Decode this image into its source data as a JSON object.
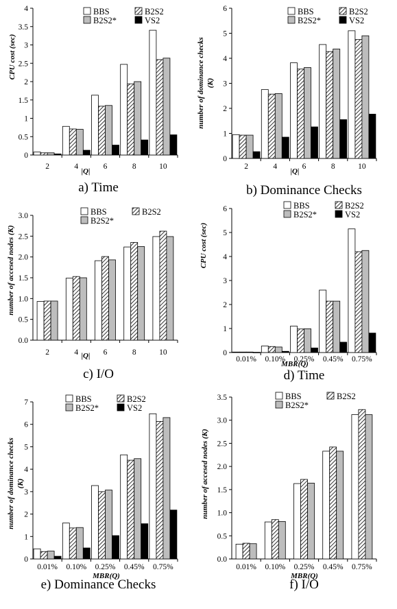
{
  "figure": {
    "patterns": {
      "BBS": "white",
      "B2S2": "hatch",
      "B2S2*": "gray",
      "VS2": "black"
    },
    "colors": {
      "gray": "#bdbdbd",
      "black": "#000000",
      "white": "#ffffff"
    }
  },
  "chart_data": [
    {
      "id": "a",
      "type": "bar",
      "caption": "a) Time",
      "ylabel": "CPU cost (sec)",
      "xlabel": "|Q|",
      "ylim": [
        0,
        4
      ],
      "yticks": [
        "0",
        "0.5",
        "1",
        "1.5",
        "2",
        "2.5",
        "3",
        "3.5",
        "4"
      ],
      "categories": [
        "2",
        "4",
        "6",
        "8",
        "10"
      ],
      "series": [
        {
          "name": "BBS",
          "values": [
            0.08,
            0.78,
            1.63,
            2.47,
            3.4
          ]
        },
        {
          "name": "B2S2",
          "values": [
            0.06,
            0.71,
            1.33,
            1.94,
            2.6
          ]
        },
        {
          "name": "B2S2*",
          "values": [
            0.06,
            0.7,
            1.35,
            2.0,
            2.64
          ]
        },
        {
          "name": "VS2",
          "values": [
            0.03,
            0.13,
            0.27,
            0.41,
            0.55
          ]
        }
      ],
      "legend_cols": 2,
      "legend": "top-right"
    },
    {
      "id": "b",
      "type": "bar",
      "caption": "b) Dominance Checks",
      "ylabel": "number of dominance checks (K)",
      "xlabel": "|Q|",
      "ylim": [
        0,
        6
      ],
      "yticks": [
        "0",
        "1",
        "2",
        "3",
        "4",
        "5",
        "6"
      ],
      "categories": [
        "2",
        "4",
        "6",
        "8",
        "10"
      ],
      "series": [
        {
          "name": "BBS",
          "values": [
            0.95,
            2.75,
            3.82,
            4.55,
            5.1
          ]
        },
        {
          "name": "B2S2",
          "values": [
            0.93,
            2.57,
            3.57,
            4.27,
            4.75
          ]
        },
        {
          "name": "B2S2*",
          "values": [
            0.93,
            2.59,
            3.63,
            4.37,
            4.9
          ]
        },
        {
          "name": "VS2",
          "values": [
            0.27,
            0.85,
            1.26,
            1.55,
            1.77
          ]
        }
      ],
      "legend_cols": 2,
      "legend": "top-right"
    },
    {
      "id": "c",
      "type": "bar",
      "caption": "c) I/O",
      "ylabel": "number of accesed nodes (K)",
      "xlabel": "|Q|",
      "ylim": [
        0,
        3
      ],
      "yticks": [
        "0.0",
        "0.5",
        "1.0",
        "1.5",
        "2.0",
        "2.5",
        "3.0"
      ],
      "categories": [
        "2",
        "4",
        "6",
        "8",
        "10"
      ],
      "series": [
        {
          "name": "BBS",
          "values": [
            0.93,
            1.49,
            1.91,
            2.24,
            2.49
          ]
        },
        {
          "name": "B2S2",
          "values": [
            0.94,
            1.53,
            2.01,
            2.35,
            2.62
          ]
        },
        {
          "name": "B2S2*",
          "values": [
            0.94,
            1.5,
            1.93,
            2.25,
            2.49
          ]
        }
      ],
      "legend_cols": 2,
      "legend": "top-right"
    },
    {
      "id": "d",
      "type": "bar",
      "caption": "d) Time",
      "ylabel": "CPU cost (sec)",
      "xlabel": "MBR(Q)",
      "ylim": [
        0,
        6
      ],
      "yticks": [
        "0",
        "1",
        "2",
        "3",
        "4",
        "5",
        "6"
      ],
      "categories": [
        "0.01%",
        "0.10%",
        "0.25%",
        "0.45%",
        "0.75%"
      ],
      "series": [
        {
          "name": "BBS",
          "values": [
            0.02,
            0.27,
            1.1,
            2.6,
            5.15
          ]
        },
        {
          "name": "B2S2",
          "values": [
            0.02,
            0.25,
            0.98,
            2.14,
            4.2
          ]
        },
        {
          "name": "B2S2*",
          "values": [
            0.02,
            0.23,
            0.99,
            2.14,
            4.25
          ]
        },
        {
          "name": "VS2",
          "values": [
            0.01,
            0.05,
            0.19,
            0.43,
            0.81
          ]
        }
      ],
      "legend_cols": 2,
      "legend": "top-right"
    },
    {
      "id": "e",
      "type": "bar",
      "caption": "e) Dominance Checks",
      "ylabel": "number of dominance checks (K)",
      "xlabel": "MBR(Q)",
      "ylim": [
        0,
        7
      ],
      "yticks": [
        "0",
        "1",
        "2",
        "3",
        "4",
        "5",
        "6",
        "7"
      ],
      "categories": [
        "0.01%",
        "0.10%",
        "0.25%",
        "0.45%",
        "0.75%"
      ],
      "series": [
        {
          "name": "BBS",
          "values": [
            0.45,
            1.6,
            3.27,
            4.64,
            6.47
          ]
        },
        {
          "name": "B2S2",
          "values": [
            0.33,
            1.38,
            3.0,
            4.4,
            6.13
          ]
        },
        {
          "name": "B2S2*",
          "values": [
            0.35,
            1.4,
            3.07,
            4.47,
            6.3
          ]
        },
        {
          "name": "VS2",
          "values": [
            0.12,
            0.49,
            1.04,
            1.57,
            2.18
          ]
        }
      ],
      "legend_cols": 2,
      "legend": "top-right"
    },
    {
      "id": "f",
      "type": "bar",
      "caption": "f) I/O",
      "ylabel": "number of accesed nodes (K)",
      "xlabel": "MBR(Q)",
      "ylim": [
        0,
        3.5
      ],
      "yticks": [
        "0.0",
        "0.5",
        "1.0",
        "1.5",
        "2.0",
        "2.5",
        "3.0",
        "3.5"
      ],
      "categories": [
        "0.01%",
        "0.10%",
        "0.25%",
        "0.45%",
        "0.75%"
      ],
      "series": [
        {
          "name": "BBS",
          "values": [
            0.32,
            0.8,
            1.63,
            2.33,
            3.12
          ]
        },
        {
          "name": "B2S2",
          "values": [
            0.34,
            0.85,
            1.72,
            2.42,
            3.23
          ]
        },
        {
          "name": "B2S2*",
          "values": [
            0.33,
            0.81,
            1.64,
            2.33,
            3.12
          ]
        }
      ],
      "legend_cols": 2,
      "legend": "top-right"
    }
  ]
}
